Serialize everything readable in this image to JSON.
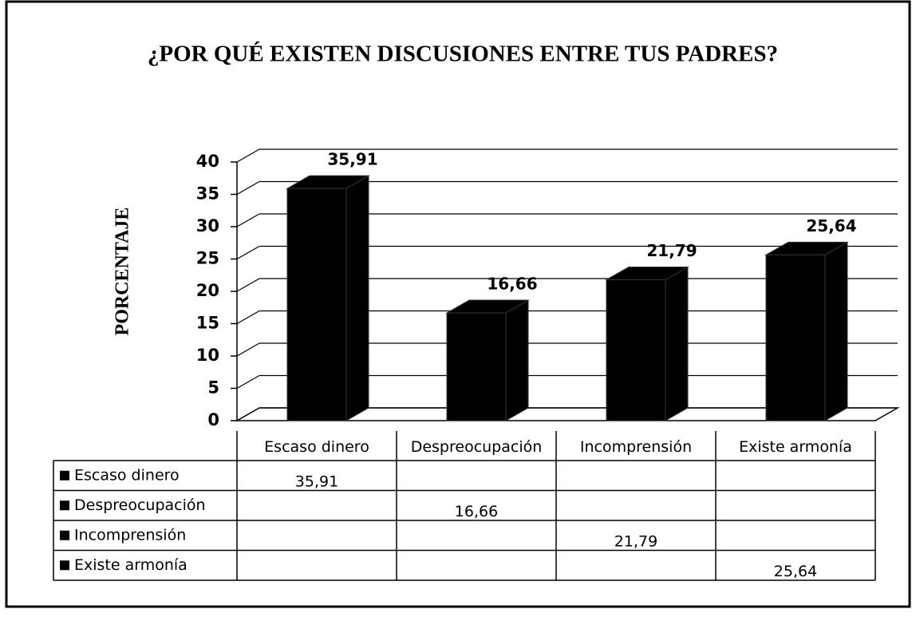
{
  "chart_data": {
    "type": "bar3d",
    "title": "¿POR QUÉ EXISTEN DISCUSIONES ENTRE TUS PADRES?",
    "ylabel": "PORCENTAJE",
    "categories": [
      "Escaso dinero",
      "Despreocupación",
      "Incomprensión",
      "Existe armonía"
    ],
    "values": [
      35.91,
      16.66,
      21.79,
      25.64
    ],
    "value_labels": [
      "35,91",
      "16,66",
      "21,79",
      "25,64"
    ],
    "color": "#000000",
    "ylim": [
      0,
      40
    ],
    "yticks": [
      0,
      5,
      10,
      15,
      20,
      25,
      30,
      35,
      40
    ],
    "grid": true,
    "data_table": true
  }
}
